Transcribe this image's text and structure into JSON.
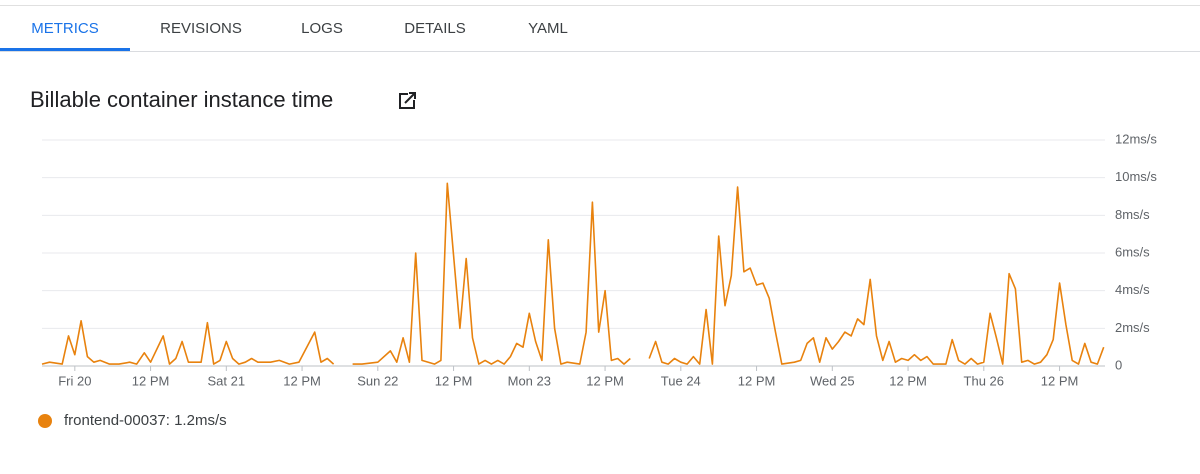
{
  "tabs": [
    "METRICS",
    "REVISIONS",
    "LOGS",
    "DETAILS",
    "YAML"
  ],
  "active_tab": 0,
  "chart_data": {
    "type": "line",
    "title": "Billable container instance time",
    "x": [
      -5.2,
      -4,
      -2,
      -1,
      0,
      1,
      2,
      3,
      4,
      5.5,
      7,
      8.7,
      9.8,
      11,
      12,
      14,
      15,
      16,
      17,
      18,
      20,
      21,
      22,
      23,
      24,
      25,
      26,
      27,
      28,
      29,
      31,
      32.4,
      34,
      35.5,
      38,
      39,
      40,
      41,
      42.5,
      44,
      45.5,
      48,
      50,
      51,
      52,
      53,
      54,
      55,
      57,
      58,
      59,
      61,
      62,
      63,
      64,
      65,
      66,
      67,
      68,
      69,
      70,
      71,
      72,
      73,
      74,
      75,
      76,
      77,
      78,
      80,
      81,
      82,
      83,
      84,
      85,
      86,
      87,
      88,
      89.5,
      91,
      92,
      93,
      94,
      95,
      96,
      97,
      98,
      99,
      100,
      101,
      102,
      103,
      104,
      105,
      106,
      107,
      108,
      109,
      110,
      111,
      112,
      114,
      115,
      116,
      117,
      118,
      119,
      120,
      121,
      122,
      123,
      124,
      125,
      126,
      127,
      128,
      129,
      130,
      131,
      132,
      133,
      134,
      135,
      136,
      138,
      139,
      140,
      141,
      142,
      143,
      144,
      145,
      146,
      147,
      148,
      149,
      150,
      151,
      152,
      153,
      154,
      155,
      156,
      157,
      158,
      159,
      160,
      161,
      162,
      163
    ],
    "series": [
      {
        "name": "frontend-00037",
        "color": "#e8820e",
        "legend_value": "1.2ms/s",
        "values": [
          0.1,
          0.2,
          0.1,
          1.6,
          0.6,
          2.4,
          0.5,
          0.2,
          0.3,
          0.1,
          0.1,
          0.2,
          0.1,
          0.7,
          0.2,
          1.6,
          0.1,
          0.4,
          1.3,
          0.2,
          0.2,
          2.3,
          0.1,
          0.3,
          1.3,
          0.4,
          0.1,
          0.2,
          0.4,
          0.2,
          0.2,
          0.3,
          0.1,
          0.2,
          1.8,
          0.2,
          0.4,
          0.1,
          null,
          0.1,
          0.1,
          0.2,
          0.8,
          0.2,
          1.5,
          0.2,
          6.0,
          0.3,
          0.1,
          0.3,
          9.7,
          2.0,
          5.7,
          1.5,
          0.1,
          0.3,
          0.1,
          0.3,
          0.1,
          0.5,
          1.2,
          1.0,
          2.8,
          1.3,
          0.3,
          6.7,
          2.0,
          0.1,
          0.2,
          0.1,
          1.8,
          8.7,
          1.8,
          4.0,
          0.3,
          0.4,
          0.1,
          0.4,
          null,
          0.4,
          1.3,
          0.2,
          0.1,
          0.4,
          0.2,
          0.1,
          0.5,
          0.1,
          3.0,
          0.1,
          6.9,
          3.2,
          4.8,
          9.5,
          5.0,
          5.2,
          4.3,
          4.4,
          3.6,
          1.8,
          0.1,
          0.2,
          0.3,
          1.2,
          1.5,
          0.2,
          1.5,
          0.9,
          1.3,
          1.8,
          1.6,
          2.5,
          2.2,
          4.6,
          1.6,
          0.3,
          1.3,
          0.2,
          0.4,
          0.3,
          0.6,
          0.3,
          0.5,
          0.1,
          0.1,
          1.4,
          0.3,
          0.1,
          0.4,
          0.1,
          0.2,
          2.8,
          1.5,
          0.1,
          4.9,
          4.1,
          0.2,
          0.3,
          0.1,
          0.2,
          0.6,
          1.4,
          4.4,
          2.2,
          0.3,
          0.1,
          1.2,
          0.2,
          0.1,
          1.0
        ]
      }
    ],
    "xlim": [
      -5.2,
      163.2
    ],
    "xticks": [
      {
        "value": 0,
        "label": "Fri 20"
      },
      {
        "value": 12,
        "label": "12 PM"
      },
      {
        "value": 24,
        "label": "Sat 21"
      },
      {
        "value": 36,
        "label": "12 PM"
      },
      {
        "value": 48,
        "label": "Sun 22"
      },
      {
        "value": 60,
        "label": "12 PM"
      },
      {
        "value": 72,
        "label": "Mon 23"
      },
      {
        "value": 84,
        "label": "12 PM"
      },
      {
        "value": 96,
        "label": "Tue 24"
      },
      {
        "value": 108,
        "label": "12 PM"
      },
      {
        "value": 120,
        "label": "Wed 25"
      },
      {
        "value": 132,
        "label": "12 PM"
      },
      {
        "value": 144,
        "label": "Thu 26"
      },
      {
        "value": 156,
        "label": "12 PM"
      }
    ],
    "ylim": [
      0,
      12
    ],
    "yticks": [
      0,
      {
        "value": 2,
        "label": "2ms/s"
      },
      {
        "value": 4,
        "label": "4ms/s"
      },
      {
        "value": 6,
        "label": "6ms/s"
      },
      {
        "value": 8,
        "label": "8ms/s"
      },
      {
        "value": 10,
        "label": "10ms/s"
      },
      {
        "value": 12,
        "label": "12ms/s"
      }
    ],
    "grid": true
  }
}
